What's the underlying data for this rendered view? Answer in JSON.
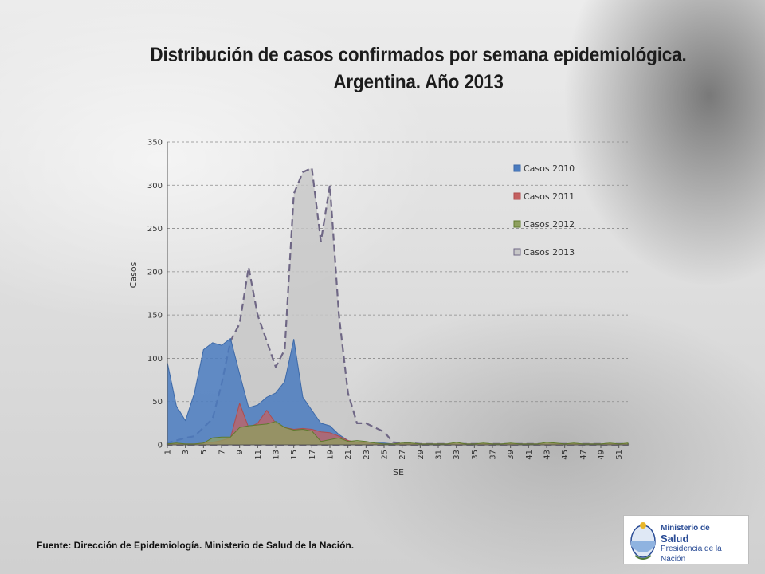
{
  "title": {
    "line1": "Distribución de casos confirmados por semana epidemiológica.",
    "line2": "Argentina. Año 2013"
  },
  "source": "Fuente: Dirección de Epidemiología. Ministerio de Salud de la Nación.",
  "logo": {
    "line1": "Ministerio de",
    "line2": "Salud",
    "line3": "Presidencia de la Nación"
  },
  "chart_data": {
    "type": "area",
    "xlabel": "SE",
    "ylabel": "Casos",
    "ylim": [
      0,
      350
    ],
    "yticks": [
      0,
      50,
      100,
      150,
      200,
      250,
      300,
      350
    ],
    "xticks": [
      1,
      3,
      5,
      7,
      9,
      11,
      13,
      15,
      17,
      19,
      21,
      23,
      25,
      27,
      29,
      31,
      33,
      35,
      37,
      39,
      41,
      43,
      45,
      47,
      49,
      51
    ],
    "grid": true,
    "legend_position": "right",
    "x": [
      1,
      2,
      3,
      4,
      5,
      6,
      7,
      8,
      9,
      10,
      11,
      12,
      13,
      14,
      15,
      16,
      17,
      18,
      19,
      20,
      21,
      22,
      23,
      24,
      25,
      26,
      27,
      28,
      29,
      30,
      31,
      32,
      33,
      34,
      35,
      36,
      37,
      38,
      39,
      40,
      41,
      42,
      43,
      44,
      45,
      46,
      47,
      48,
      49,
      50,
      51,
      52
    ],
    "series": [
      {
        "name": "Casos 2013",
        "color": "#c7c7c7",
        "line_color": "#6f6785",
        "values": [
          2,
          5,
          8,
          10,
          20,
          30,
          70,
          120,
          140,
          205,
          150,
          120,
          90,
          110,
          290,
          315,
          320,
          235,
          300,
          150,
          60,
          25,
          25,
          20,
          15,
          3,
          2,
          2,
          1,
          1,
          1,
          1,
          1,
          1,
          1,
          1,
          1,
          1,
          1,
          1,
          1,
          1,
          1,
          1,
          1,
          1,
          1,
          1,
          1,
          1,
          1,
          1
        ]
      },
      {
        "name": "Casos 2010",
        "color": "#4a7bbf",
        "line_color": "#3d69a8",
        "values": [
          95,
          45,
          28,
          60,
          110,
          118,
          115,
          123,
          82,
          43,
          46,
          55,
          60,
          73,
          122,
          55,
          40,
          25,
          22,
          12,
          5,
          3,
          2,
          2,
          2,
          1,
          1,
          1,
          1,
          1,
          1,
          1,
          1,
          1,
          1,
          1,
          1,
          1,
          1,
          1,
          1,
          1,
          1,
          1,
          1,
          1,
          1,
          1,
          1,
          1,
          1,
          1
        ]
      },
      {
        "name": "Casos 2011",
        "color": "#c46060",
        "line_color": "#b04c4c",
        "values": [
          1,
          1,
          1,
          1,
          2,
          3,
          5,
          8,
          48,
          20,
          25,
          40,
          25,
          20,
          18,
          19,
          18,
          15,
          14,
          10,
          5,
          3,
          2,
          1,
          1,
          1,
          1,
          1,
          1,
          1,
          1,
          1,
          1,
          1,
          1,
          1,
          1,
          1,
          1,
          1,
          1,
          1,
          1,
          1,
          1,
          1,
          1,
          1,
          1,
          1,
          1,
          1
        ]
      },
      {
        "name": "Casos 2012",
        "color": "#8fa05f",
        "line_color": "#5f7a2d",
        "values": [
          1,
          2,
          1,
          1,
          2,
          8,
          9,
          9,
          20,
          22,
          23,
          24,
          27,
          20,
          17,
          18,
          16,
          4,
          6,
          8,
          4,
          5,
          4,
          2,
          1,
          1,
          2,
          2,
          1,
          1,
          1,
          1,
          3,
          1,
          1,
          2,
          1,
          1,
          2,
          1,
          1,
          1,
          3,
          2,
          1,
          2,
          1,
          1,
          1,
          2,
          1,
          2
        ]
      }
    ]
  }
}
